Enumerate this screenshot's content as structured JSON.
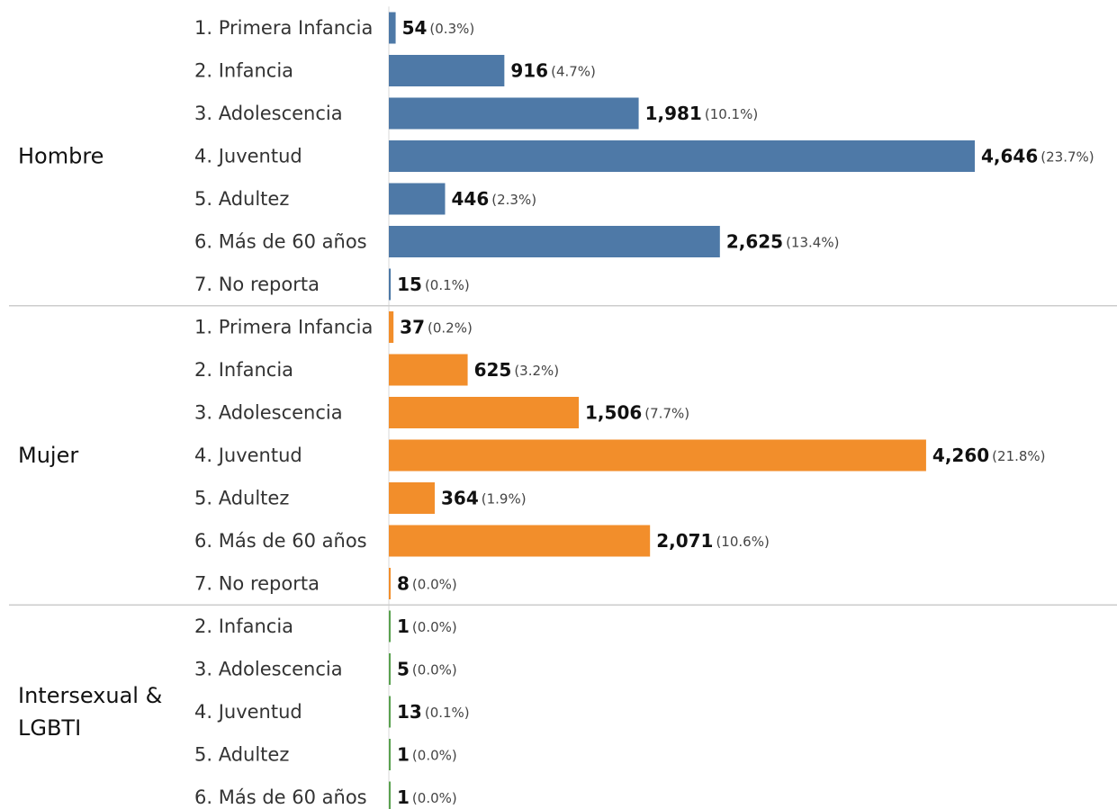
{
  "chart_data": {
    "type": "bar",
    "orientation": "horizontal",
    "grid": false,
    "legend": "none",
    "colors": {
      "Hombre": "#4e79a7",
      "Mujer": "#f28e2b",
      "Intersexual & LGBTI": "#59a14f"
    },
    "groups": [
      {
        "name": "Hombre",
        "label_lines": [
          "Hombre"
        ],
        "rows": [
          {
            "category": "1. Primera Infancia",
            "value": 54,
            "pct": "(0.3%)",
            "value_label": "54"
          },
          {
            "category": "2. Infancia",
            "value": 916,
            "pct": "(4.7%)",
            "value_label": "916"
          },
          {
            "category": "3. Adolescencia",
            "value": 1981,
            "pct": "(10.1%)",
            "value_label": "1,981"
          },
          {
            "category": "4. Juventud",
            "value": 4646,
            "pct": "(23.7%)",
            "value_label": "4,646"
          },
          {
            "category": "5. Adultez",
            "value": 446,
            "pct": "(2.3%)",
            "value_label": "446"
          },
          {
            "category": "6. Más de 60 años",
            "value": 2625,
            "pct": "(13.4%)",
            "value_label": "2,625"
          },
          {
            "category": "7. No reporta",
            "value": 15,
            "pct": "(0.1%)",
            "value_label": "15"
          }
        ]
      },
      {
        "name": "Mujer",
        "label_lines": [
          "Mujer"
        ],
        "rows": [
          {
            "category": "1. Primera Infancia",
            "value": 37,
            "pct": "(0.2%)",
            "value_label": "37"
          },
          {
            "category": "2. Infancia",
            "value": 625,
            "pct": "(3.2%)",
            "value_label": "625"
          },
          {
            "category": "3. Adolescencia",
            "value": 1506,
            "pct": "(7.7%)",
            "value_label": "1,506"
          },
          {
            "category": "4. Juventud",
            "value": 4260,
            "pct": "(21.8%)",
            "value_label": "4,260"
          },
          {
            "category": "5. Adultez",
            "value": 364,
            "pct": "(1.9%)",
            "value_label": "364"
          },
          {
            "category": "6. Más de 60 años",
            "value": 2071,
            "pct": "(10.6%)",
            "value_label": "2,071"
          },
          {
            "category": "7. No reporta",
            "value": 8,
            "pct": "(0.0%)",
            "value_label": "8"
          }
        ]
      },
      {
        "name": "Intersexual & LGBTI",
        "label_lines": [
          "Intersexual &",
          "LGBTI"
        ],
        "rows": [
          {
            "category": "2. Infancia",
            "value": 1,
            "pct": "(0.0%)",
            "value_label": "1"
          },
          {
            "category": "3. Adolescencia",
            "value": 5,
            "pct": "(0.0%)",
            "value_label": "5"
          },
          {
            "category": "4. Juventud",
            "value": 13,
            "pct": "(0.1%)",
            "value_label": "13"
          },
          {
            "category": "5. Adultez",
            "value": 1,
            "pct": "(0.0%)",
            "value_label": "1"
          },
          {
            "category": "6. Más de 60 años",
            "value": 1,
            "pct": "(0.0%)",
            "value_label": "1"
          }
        ]
      }
    ]
  }
}
